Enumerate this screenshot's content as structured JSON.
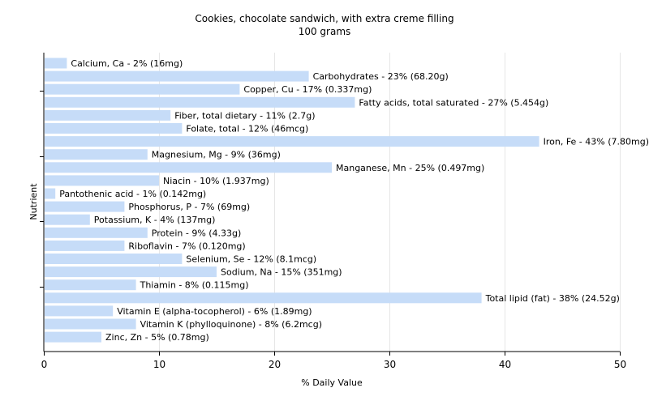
{
  "chart_data": {
    "type": "bar",
    "orientation": "horizontal",
    "title": "Cookies, chocolate sandwich, with extra creme filling",
    "subtitle": "100 grams",
    "xlabel": "% Daily Value",
    "ylabel": "Nutrient",
    "xlim": [
      0,
      50
    ],
    "xticks": [
      0,
      10,
      20,
      30,
      40,
      50
    ],
    "grid": "vertical",
    "bar_color": "#c6dcf8",
    "categories": [
      "Calcium, Ca",
      "Carbohydrates",
      "Copper, Cu",
      "Fatty acids, total saturated",
      "Fiber, total dietary",
      "Folate, total",
      "Iron, Fe",
      "Magnesium, Mg",
      "Manganese, Mn",
      "Niacin",
      "Pantothenic acid",
      "Phosphorus, P",
      "Potassium, K",
      "Protein",
      "Riboflavin",
      "Selenium, Se",
      "Sodium, Na",
      "Thiamin",
      "Total lipid (fat)",
      "Vitamin E (alpha-tocopherol)",
      "Vitamin K (phylloquinone)",
      "Zinc, Zn"
    ],
    "values": [
      2,
      23,
      17,
      27,
      11,
      12,
      43,
      9,
      25,
      10,
      1,
      7,
      4,
      9,
      7,
      12,
      15,
      8,
      38,
      6,
      8,
      5
    ],
    "labels": [
      "Calcium, Ca - 2% (16mg)",
      "Carbohydrates - 23% (68.20g)",
      "Copper, Cu - 17% (0.337mg)",
      "Fatty acids, total saturated - 27% (5.454g)",
      "Fiber, total dietary - 11% (2.7g)",
      "Folate, total - 12% (46mcg)",
      "Iron, Fe - 43% (7.80mg)",
      "Magnesium, Mg - 9% (36mg)",
      "Manganese, Mn - 25% (0.497mg)",
      "Niacin - 10% (1.937mg)",
      "Pantothenic acid - 1% (0.142mg)",
      "Phosphorus, P - 7% (69mg)",
      "Potassium, K - 4% (137mg)",
      "Protein - 9% (4.33g)",
      "Riboflavin - 7% (0.120mg)",
      "Selenium, Se - 12% (8.1mcg)",
      "Sodium, Na - 15% (351mg)",
      "Thiamin - 8% (0.115mg)",
      "Total lipid (fat) - 38% (24.52g)",
      "Vitamin E (alpha-tocopherol) - 6% (1.89mg)",
      "Vitamin K (phylloquinone) - 8% (6.2mcg)",
      "Zinc, Zn - 5% (0.78mg)"
    ]
  }
}
